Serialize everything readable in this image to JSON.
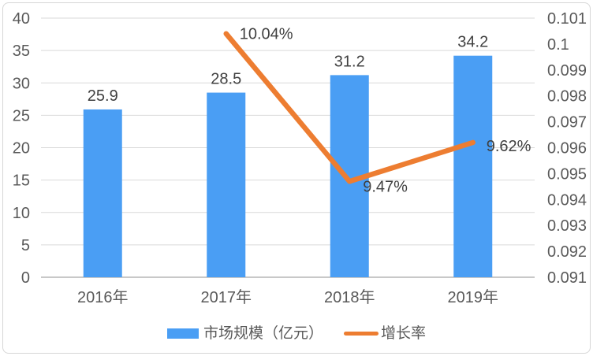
{
  "chart_data": {
    "type": "bar+line-combo",
    "title": "",
    "categories": [
      "2016年",
      "2017年",
      "2018年",
      "2019年"
    ],
    "series": [
      {
        "name": "市场规模（亿元）",
        "chart_type": "bar",
        "axis": "left",
        "color": "#4a9ef4",
        "values": [
          25.9,
          28.5,
          31.2,
          34.2
        ],
        "data_labels": [
          "25.9",
          "28.5",
          "31.2",
          "34.2"
        ]
      },
      {
        "name": "增长率",
        "chart_type": "line",
        "axis": "right",
        "color": "#ed7d31",
        "values": [
          null,
          0.1004,
          0.0947,
          0.0962
        ],
        "data_labels": [
          null,
          "10.04%",
          "9.47%",
          "9.62%"
        ]
      }
    ],
    "left_axis": {
      "min": 0,
      "max": 40,
      "step": 5,
      "tick_labels": [
        "0",
        "5",
        "10",
        "15",
        "20",
        "25",
        "30",
        "35",
        "40"
      ]
    },
    "right_axis": {
      "min": 0.091,
      "max": 0.101,
      "step": 0.001,
      "tick_labels": [
        "0.091",
        "0.092",
        "0.093",
        "0.094",
        "0.095",
        "0.096",
        "0.097",
        "0.098",
        "0.099",
        "0.1",
        "0.101"
      ]
    },
    "grid": "horizontal-left-axis-intervals",
    "legend_position": "bottom",
    "colors": {
      "bar": "#4a9ef4",
      "line": "#ed7d31",
      "tick_text": "#595959",
      "category_text": "#595959",
      "data_label_text": "#404040",
      "gridline": "#d9d9d9",
      "axis_line": "#a6a6a6",
      "frame_border": "#d6d6d6"
    }
  }
}
